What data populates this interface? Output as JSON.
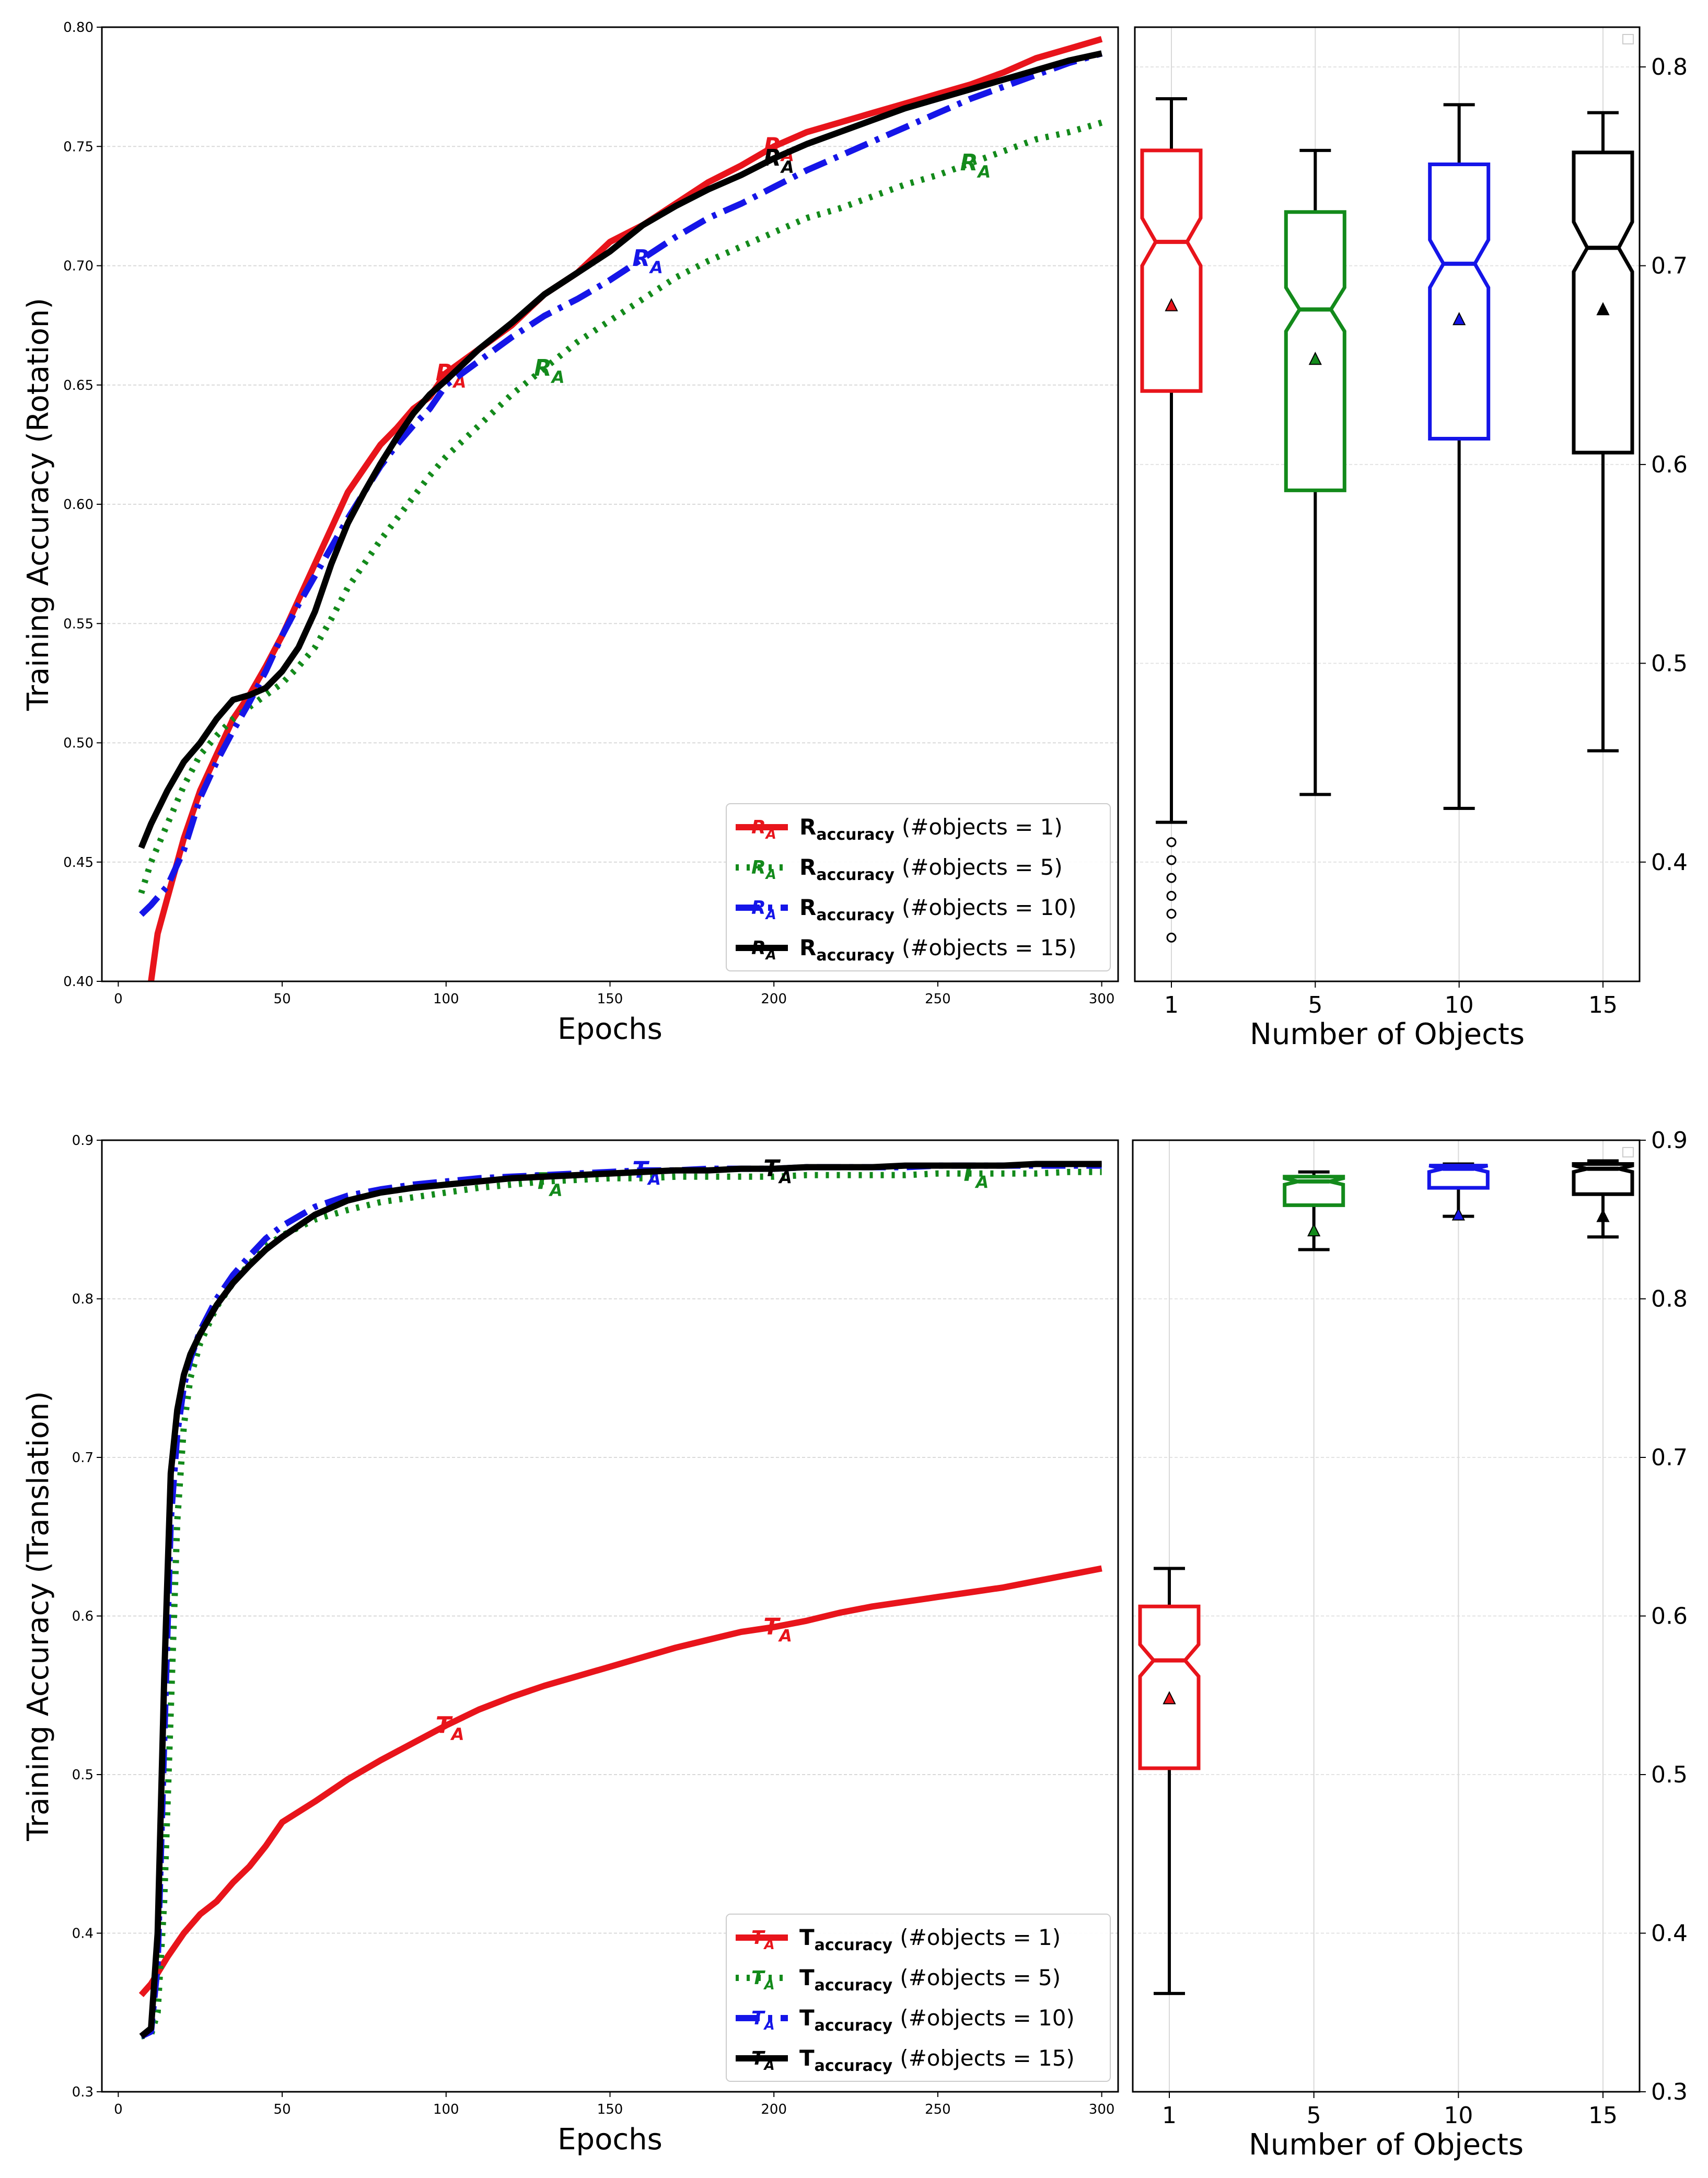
{
  "chart_data": [
    {
      "id": "rot_line",
      "type": "line",
      "xlabel": "Epochs",
      "ylabel": "Training Accuracy (Rotation)",
      "xlim": [
        -5,
        305
      ],
      "ylim": [
        0.4,
        0.8
      ],
      "xticks": [
        "0",
        "50",
        "100",
        "150",
        "200",
        "250",
        "300"
      ],
      "yticks": [
        "0.40",
        "0.45",
        "0.50",
        "0.55",
        "0.60",
        "0.65",
        "0.70",
        "0.75",
        "0.80"
      ],
      "legend_position": "lower-right",
      "series": [
        {
          "name": "R_accuracy (#objects = 1)",
          "legend_main": "R",
          "legend_sub": "accuracy",
          "legend_suffix": "(#objects = 1)",
          "marker_label": "R",
          "marker_sub": "A",
          "marker_x": [
            100,
            200
          ],
          "color": "#e8141b",
          "dash": "solid",
          "x": [
            10,
            12,
            15,
            20,
            25,
            30,
            35,
            40,
            45,
            50,
            55,
            60,
            65,
            70,
            75,
            80,
            85,
            90,
            95,
            100,
            110,
            120,
            130,
            140,
            150,
            160,
            170,
            180,
            190,
            200,
            210,
            220,
            230,
            240,
            250,
            260,
            270,
            280,
            290,
            300
          ],
          "values": [
            0.4,
            0.42,
            0.435,
            0.46,
            0.48,
            0.495,
            0.51,
            0.52,
            0.532,
            0.545,
            0.56,
            0.575,
            0.59,
            0.605,
            0.615,
            0.625,
            0.632,
            0.64,
            0.645,
            0.655,
            0.665,
            0.675,
            0.688,
            0.697,
            0.71,
            0.717,
            0.726,
            0.735,
            0.742,
            0.75,
            0.756,
            0.76,
            0.764,
            0.768,
            0.772,
            0.776,
            0.781,
            0.787,
            0.791,
            0.795
          ]
        },
        {
          "name": "R_accuracy (#objects = 5)",
          "legend_main": "R",
          "legend_sub": "accuracy",
          "legend_suffix": "(#objects = 5)",
          "marker_label": "R",
          "marker_sub": "A",
          "marker_x": [
            130,
            260
          ],
          "color": "#138a1b",
          "dash": "dotted",
          "x": [
            7,
            10,
            15,
            20,
            25,
            30,
            35,
            40,
            45,
            50,
            55,
            60,
            65,
            70,
            75,
            80,
            85,
            90,
            95,
            100,
            110,
            120,
            130,
            140,
            150,
            160,
            170,
            180,
            190,
            200,
            210,
            220,
            230,
            240,
            250,
            260,
            270,
            280,
            290,
            300
          ],
          "values": [
            0.437,
            0.45,
            0.466,
            0.482,
            0.495,
            0.503,
            0.51,
            0.515,
            0.52,
            0.525,
            0.532,
            0.54,
            0.552,
            0.565,
            0.575,
            0.585,
            0.594,
            0.603,
            0.612,
            0.62,
            0.633,
            0.646,
            0.657,
            0.668,
            0.677,
            0.686,
            0.695,
            0.702,
            0.708,
            0.714,
            0.72,
            0.724,
            0.729,
            0.734,
            0.738,
            0.743,
            0.748,
            0.753,
            0.756,
            0.76
          ]
        },
        {
          "name": "R_accuracy (#objects = 10)",
          "legend_main": "R",
          "legend_sub": "accuracy",
          "legend_suffix": "(#objects = 10)",
          "marker_label": "R",
          "marker_sub": "A",
          "marker_x": [
            160
          ],
          "color": "#1515e8",
          "dash": "dashdot",
          "x": [
            7,
            10,
            15,
            20,
            25,
            30,
            35,
            40,
            45,
            50,
            55,
            60,
            65,
            70,
            75,
            80,
            85,
            90,
            95,
            100,
            110,
            120,
            130,
            140,
            150,
            160,
            170,
            180,
            190,
            200,
            210,
            220,
            230,
            240,
            250,
            260,
            270,
            280,
            290,
            300
          ],
          "values": [
            0.428,
            0.432,
            0.44,
            0.455,
            0.477,
            0.492,
            0.505,
            0.517,
            0.53,
            0.545,
            0.558,
            0.57,
            0.582,
            0.594,
            0.605,
            0.616,
            0.625,
            0.633,
            0.64,
            0.65,
            0.66,
            0.67,
            0.679,
            0.686,
            0.694,
            0.703,
            0.712,
            0.72,
            0.726,
            0.733,
            0.74,
            0.746,
            0.752,
            0.758,
            0.764,
            0.77,
            0.775,
            0.78,
            0.785,
            0.789
          ]
        },
        {
          "name": "R_accuracy (#objects = 15)",
          "legend_main": "R",
          "legend_sub": "accuracy",
          "legend_suffix": "(#objects = 15)",
          "marker_label": "R",
          "marker_sub": "A",
          "marker_x": [
            200
          ],
          "color": "#000000",
          "dash": "solid",
          "x": [
            7,
            10,
            15,
            20,
            25,
            30,
            35,
            40,
            45,
            50,
            55,
            60,
            65,
            70,
            75,
            80,
            85,
            90,
            95,
            100,
            110,
            120,
            130,
            140,
            150,
            160,
            170,
            180,
            190,
            200,
            210,
            220,
            230,
            240,
            250,
            260,
            270,
            280,
            290,
            300
          ],
          "values": [
            0.456,
            0.466,
            0.48,
            0.492,
            0.5,
            0.51,
            0.518,
            0.52,
            0.523,
            0.53,
            0.54,
            0.555,
            0.575,
            0.592,
            0.605,
            0.617,
            0.628,
            0.638,
            0.646,
            0.652,
            0.665,
            0.676,
            0.688,
            0.697,
            0.706,
            0.717,
            0.725,
            0.732,
            0.738,
            0.745,
            0.751,
            0.756,
            0.761,
            0.766,
            0.77,
            0.774,
            0.778,
            0.782,
            0.786,
            0.789
          ]
        }
      ]
    },
    {
      "id": "rot_box",
      "type": "box",
      "xlabel": "Number of Objects",
      "ylim": [
        0.34,
        0.82
      ],
      "yticks": [
        "0.4",
        "0.5",
        "0.6",
        "0.7",
        "0.8"
      ],
      "categories": [
        "1",
        "5",
        "10",
        "15"
      ],
      "colors": [
        "#e8141b",
        "#138a1b",
        "#1515e8",
        "#000000"
      ],
      "boxes": [
        {
          "whislo": 0.42,
          "q1": 0.637,
          "med": 0.712,
          "q3": 0.758,
          "whishi": 0.784,
          "mean": 0.68,
          "notch_lo": 0.7,
          "notch_hi": 0.724,
          "fliers": [
            0.41,
            0.401,
            0.392,
            0.383,
            0.374,
            0.362
          ]
        },
        {
          "whislo": 0.434,
          "q1": 0.587,
          "med": 0.678,
          "q3": 0.727,
          "whishi": 0.758,
          "mean": 0.653,
          "notch_lo": 0.667,
          "notch_hi": 0.689,
          "fliers": []
        },
        {
          "whislo": 0.427,
          "q1": 0.613,
          "med": 0.701,
          "q3": 0.751,
          "whishi": 0.781,
          "mean": 0.673,
          "notch_lo": 0.689,
          "notch_hi": 0.713,
          "fliers": []
        },
        {
          "whislo": 0.456,
          "q1": 0.606,
          "med": 0.709,
          "q3": 0.757,
          "whishi": 0.777,
          "mean": 0.678,
          "notch_lo": 0.697,
          "notch_hi": 0.722,
          "fliers": []
        }
      ]
    },
    {
      "id": "trans_line",
      "type": "line",
      "xlabel": "Epochs",
      "ylabel": "Training Accuracy (Translation)",
      "xlim": [
        -5,
        305
      ],
      "ylim": [
        0.3,
        0.9
      ],
      "xticks": [
        "0",
        "50",
        "100",
        "150",
        "200",
        "250",
        "300"
      ],
      "yticks": [
        "0.3",
        "0.4",
        "0.5",
        "0.6",
        "0.7",
        "0.8",
        "0.9"
      ],
      "legend_position": "lower-right",
      "series": [
        {
          "name": "T_accuracy (#objects = 1)",
          "legend_main": "T",
          "legend_sub": "accuracy",
          "legend_suffix": "(#objects = 1)",
          "marker_label": "T",
          "marker_sub": "A",
          "marker_x": [
            100,
            200
          ],
          "color": "#e8141b",
          "dash": "solid",
          "x": [
            7,
            10,
            15,
            20,
            25,
            30,
            35,
            40,
            45,
            50,
            60,
            70,
            80,
            90,
            100,
            110,
            120,
            130,
            140,
            150,
            160,
            170,
            180,
            190,
            200,
            210,
            220,
            230,
            240,
            250,
            260,
            270,
            280,
            290,
            300
          ],
          "values": [
            0.361,
            0.368,
            0.385,
            0.4,
            0.412,
            0.42,
            0.432,
            0.442,
            0.455,
            0.47,
            0.483,
            0.497,
            0.509,
            0.52,
            0.531,
            0.541,
            0.549,
            0.556,
            0.562,
            0.568,
            0.574,
            0.58,
            0.585,
            0.59,
            0.593,
            0.597,
            0.602,
            0.606,
            0.609,
            0.612,
            0.615,
            0.618,
            0.622,
            0.626,
            0.63
          ]
        },
        {
          "name": "T_accuracy (#objects = 5)",
          "legend_main": "T",
          "legend_sub": "accuracy",
          "legend_suffix": "(#objects = 5)",
          "marker_label": "T",
          "marker_sub": "A",
          "marker_x": [
            130,
            260
          ],
          "color": "#138a1b",
          "dash": "dotted",
          "x": [
            7,
            10,
            12,
            14,
            16,
            18,
            20,
            22,
            25,
            30,
            35,
            40,
            45,
            50,
            60,
            70,
            80,
            90,
            100,
            110,
            120,
            130,
            140,
            150,
            160,
            170,
            180,
            190,
            200,
            210,
            220,
            230,
            240,
            250,
            260,
            270,
            280,
            290,
            300
          ],
          "values": [
            0.335,
            0.336,
            0.35,
            0.42,
            0.54,
            0.66,
            0.72,
            0.75,
            0.772,
            0.795,
            0.81,
            0.822,
            0.833,
            0.84,
            0.85,
            0.856,
            0.861,
            0.864,
            0.867,
            0.87,
            0.872,
            0.874,
            0.875,
            0.876,
            0.876,
            0.877,
            0.877,
            0.877,
            0.877,
            0.878,
            0.878,
            0.878,
            0.878,
            0.879,
            0.879,
            0.879,
            0.879,
            0.88,
            0.88
          ]
        },
        {
          "name": "T_accuracy (#objects = 10)",
          "legend_main": "T",
          "legend_sub": "accuracy",
          "legend_suffix": "(#objects = 10)",
          "marker_label": "T",
          "marker_sub": "A",
          "marker_x": [
            160
          ],
          "color": "#1515e8",
          "dash": "dashdot",
          "x": [
            7,
            10,
            12,
            14,
            16,
            18,
            20,
            22,
            25,
            30,
            35,
            40,
            45,
            50,
            60,
            70,
            80,
            90,
            100,
            110,
            120,
            130,
            140,
            150,
            160,
            170,
            180,
            190,
            200,
            210,
            220,
            230,
            240,
            250,
            260,
            270,
            280,
            290,
            300
          ],
          "values": [
            0.335,
            0.338,
            0.38,
            0.52,
            0.66,
            0.715,
            0.745,
            0.762,
            0.78,
            0.8,
            0.815,
            0.827,
            0.838,
            0.846,
            0.858,
            0.865,
            0.869,
            0.872,
            0.874,
            0.876,
            0.877,
            0.878,
            0.879,
            0.88,
            0.881,
            0.881,
            0.882,
            0.882,
            0.882,
            0.883,
            0.883,
            0.883,
            0.883,
            0.884,
            0.884,
            0.884,
            0.884,
            0.884,
            0.884
          ]
        },
        {
          "name": "T_accuracy (#objects = 15)",
          "legend_main": "T",
          "legend_sub": "accuracy",
          "legend_suffix": "(#objects = 15)",
          "marker_label": "T",
          "marker_sub": "A",
          "marker_x": [
            200
          ],
          "color": "#000000",
          "dash": "solid",
          "x": [
            7,
            10,
            12,
            14,
            16,
            18,
            20,
            22,
            25,
            30,
            35,
            40,
            45,
            50,
            60,
            70,
            80,
            90,
            100,
            110,
            120,
            130,
            140,
            150,
            160,
            170,
            180,
            190,
            200,
            210,
            220,
            230,
            240,
            250,
            260,
            270,
            280,
            290,
            300
          ],
          "values": [
            0.335,
            0.34,
            0.4,
            0.56,
            0.69,
            0.73,
            0.752,
            0.765,
            0.778,
            0.796,
            0.81,
            0.821,
            0.831,
            0.839,
            0.853,
            0.862,
            0.867,
            0.87,
            0.872,
            0.874,
            0.876,
            0.877,
            0.878,
            0.879,
            0.88,
            0.881,
            0.881,
            0.882,
            0.882,
            0.883,
            0.883,
            0.883,
            0.884,
            0.884,
            0.884,
            0.884,
            0.885,
            0.885,
            0.885
          ]
        }
      ]
    },
    {
      "id": "trans_box",
      "type": "box",
      "xlabel": "Number of Objects",
      "ylim": [
        0.3,
        0.9
      ],
      "yticks": [
        "0.3",
        "0.4",
        "0.5",
        "0.6",
        "0.7",
        "0.8",
        "0.9"
      ],
      "categories": [
        "1",
        "5",
        "10",
        "15"
      ],
      "colors": [
        "#e8141b",
        "#138a1b",
        "#1515e8",
        "#000000"
      ],
      "boxes": [
        {
          "whislo": 0.362,
          "q1": 0.504,
          "med": 0.572,
          "q3": 0.606,
          "whishi": 0.63,
          "mean": 0.548,
          "notch_lo": 0.562,
          "notch_hi": 0.582,
          "fliers": []
        },
        {
          "whislo": 0.831,
          "q1": 0.859,
          "med": 0.874,
          "q3": 0.877,
          "whishi": 0.88,
          "mean": 0.843,
          "notch_lo": 0.872,
          "notch_hi": 0.876,
          "fliers": []
        },
        {
          "whislo": 0.852,
          "q1": 0.87,
          "med": 0.882,
          "q3": 0.884,
          "whishi": 0.885,
          "mean": 0.853,
          "notch_lo": 0.88,
          "notch_hi": 0.884,
          "fliers": []
        },
        {
          "whislo": 0.839,
          "q1": 0.866,
          "med": 0.882,
          "q3": 0.885,
          "whishi": 0.887,
          "mean": 0.852,
          "notch_lo": 0.88,
          "notch_hi": 0.884,
          "fliers": []
        }
      ]
    }
  ]
}
